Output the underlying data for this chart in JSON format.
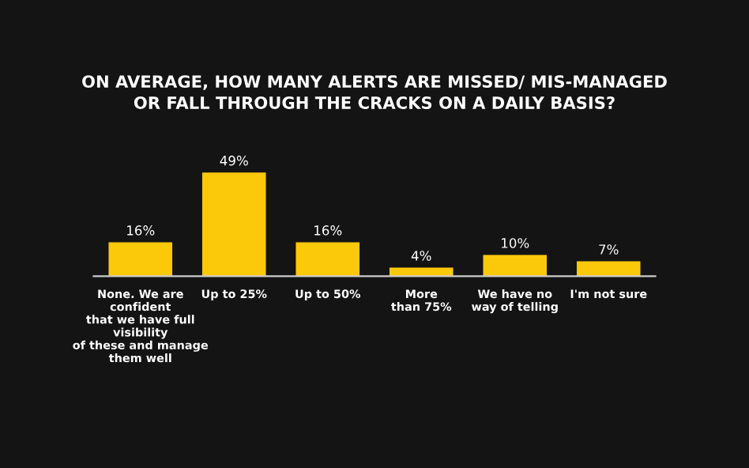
{
  "chart_data": {
    "type": "bar",
    "title": "ON AVERAGE, HOW MANY ALERTS ARE MISSED/ MIS-MANAGED\nOR FALL THROUGH THE CRACKS ON A DAILY BASIS?",
    "categories": [
      "None. We are\nconfident\nthat we have full\nvisibility\nof these and manage\nthem well",
      "Up to 25%",
      "Up to 50%",
      "More\nthan 75%",
      "We have no\nway of telling",
      "I'm not sure"
    ],
    "values": [
      16,
      49,
      16,
      4,
      10,
      7
    ],
    "value_labels": [
      "16%",
      "49%",
      "16%",
      "4%",
      "10%",
      "7%"
    ],
    "color": "#fcc80a",
    "grid": false,
    "legend": false
  }
}
